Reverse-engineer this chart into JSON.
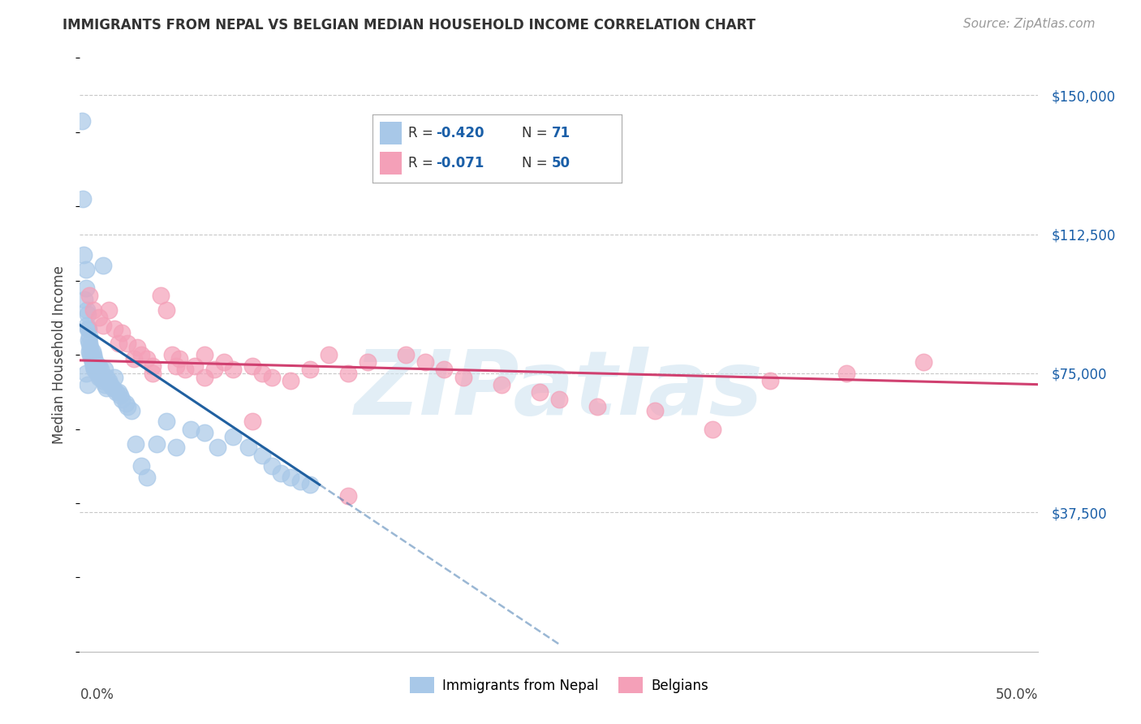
{
  "title": "IMMIGRANTS FROM NEPAL VS BELGIAN MEDIAN HOUSEHOLD INCOME CORRELATION CHART",
  "source": "Source: ZipAtlas.com",
  "ylabel": "Median Household Income",
  "legend_label1": "Immigrants from Nepal",
  "legend_label2": "Belgians",
  "blue_color": "#a8c8e8",
  "pink_color": "#f4a0b8",
  "blue_line_color": "#2060a0",
  "pink_line_color": "#d04070",
  "blue_scatter_x": [
    0.1,
    0.15,
    0.2,
    0.25,
    0.3,
    0.3,
    0.35,
    0.35,
    0.4,
    0.4,
    0.45,
    0.45,
    0.5,
    0.5,
    0.5,
    0.55,
    0.55,
    0.6,
    0.6,
    0.65,
    0.65,
    0.7,
    0.7,
    0.75,
    0.75,
    0.8,
    0.8,
    0.85,
    0.9,
    0.9,
    0.95,
    1.0,
    1.0,
    1.1,
    1.1,
    1.2,
    1.2,
    1.3,
    1.3,
    1.4,
    1.4,
    1.5,
    1.6,
    1.7,
    1.8,
    1.9,
    2.0,
    2.1,
    2.2,
    2.4,
    2.5,
    2.7,
    2.9,
    3.2,
    3.5,
    4.0,
    4.5,
    5.0,
    5.8,
    6.5,
    7.2,
    8.0,
    8.8,
    9.5,
    10.0,
    10.5,
    11.0,
    11.5,
    12.0,
    0.3,
    0.4
  ],
  "blue_scatter_y": [
    143000,
    122000,
    107000,
    95000,
    103000,
    98000,
    92000,
    88000,
    91000,
    87000,
    87000,
    84000,
    85000,
    83000,
    81000,
    82000,
    80000,
    80000,
    79000,
    81000,
    78000,
    80000,
    77000,
    79000,
    76000,
    78000,
    76000,
    77000,
    77000,
    75000,
    75000,
    77000,
    74000,
    76000,
    74000,
    104000,
    73000,
    76000,
    72000,
    74000,
    71000,
    73000,
    72000,
    71000,
    74000,
    70000,
    70000,
    69000,
    68000,
    67000,
    66000,
    65000,
    56000,
    50000,
    47000,
    56000,
    62000,
    55000,
    60000,
    59000,
    55000,
    58000,
    55000,
    53000,
    50000,
    48000,
    47000,
    46000,
    45000,
    75000,
    72000
  ],
  "pink_scatter_x": [
    0.5,
    0.7,
    1.0,
    1.2,
    1.5,
    1.8,
    2.0,
    2.2,
    2.5,
    2.8,
    3.0,
    3.2,
    3.5,
    3.8,
    4.2,
    4.5,
    4.8,
    5.2,
    5.5,
    6.0,
    6.5,
    7.0,
    7.5,
    8.0,
    9.0,
    9.5,
    10.0,
    11.0,
    12.0,
    13.0,
    14.0,
    15.0,
    17.0,
    18.0,
    19.0,
    20.0,
    22.0,
    24.0,
    25.0,
    27.0,
    30.0,
    33.0,
    36.0,
    40.0,
    44.0,
    5.0,
    3.8,
    6.5,
    9.0,
    14.0
  ],
  "pink_scatter_y": [
    96000,
    92000,
    90000,
    88000,
    92000,
    87000,
    83000,
    86000,
    83000,
    79000,
    82000,
    80000,
    79000,
    77000,
    96000,
    92000,
    80000,
    79000,
    76000,
    77000,
    80000,
    76000,
    78000,
    76000,
    77000,
    75000,
    74000,
    73000,
    76000,
    80000,
    75000,
    78000,
    80000,
    78000,
    76000,
    74000,
    72000,
    70000,
    68000,
    66000,
    65000,
    60000,
    73000,
    75000,
    78000,
    77000,
    75000,
    74000,
    62000,
    42000
  ],
  "blue_line_x0": 0.0,
  "blue_line_y0": 88000,
  "blue_line_x1": 12.5,
  "blue_line_y1": 45000,
  "blue_dash_x0": 12.5,
  "blue_dash_y0": 45000,
  "blue_dash_x1": 25.0,
  "blue_dash_y1": 2000,
  "pink_line_x0": 0.0,
  "pink_line_y0": 78500,
  "pink_line_x1": 50.0,
  "pink_line_y1": 72000,
  "xmin": 0,
  "xmax": 50,
  "ymin": 0,
  "ymax": 160000,
  "yticks": [
    0,
    37500,
    75000,
    112500,
    150000
  ],
  "ytick_labels": [
    "",
    "$37,500",
    "$75,000",
    "$112,500",
    "$150,000"
  ],
  "watermark": "ZIPatlas",
  "background_color": "#ffffff",
  "grid_color": "#c8c8c8",
  "title_fontsize": 12,
  "source_fontsize": 11,
  "axis_label_fontsize": 12,
  "tick_label_fontsize": 12,
  "legend_fontsize": 12,
  "legend_r1": "-0.420",
  "legend_n1": "71",
  "legend_r2": "-0.071",
  "legend_n2": "50"
}
